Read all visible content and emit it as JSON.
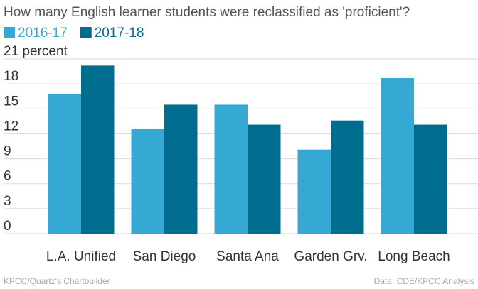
{
  "chart_data": {
    "type": "bar",
    "title": "How many English learner students were reclassified as 'proficient'?",
    "categories": [
      "L.A. Unified",
      "San Diego",
      "Santa Ana",
      "Garden Grv.",
      "Long Beach"
    ],
    "series": [
      {
        "name": "2016-17",
        "color": "#35a9d4",
        "values": [
          16.8,
          12.6,
          15.5,
          10.1,
          18.7
        ]
      },
      {
        "name": "2017-18",
        "color": "#006d8f",
        "values": [
          20.2,
          15.5,
          13.1,
          13.6,
          13.1
        ]
      }
    ],
    "ylim": [
      0,
      21
    ],
    "yticks": [
      0,
      3,
      6,
      9,
      12,
      15,
      18,
      {
        "value": 21,
        "label": "21 percent"
      }
    ],
    "grid": true,
    "source": "Data: CDE/KPCC Analysis",
    "credit": "KPCC/Quartz's Chartbuilder"
  }
}
